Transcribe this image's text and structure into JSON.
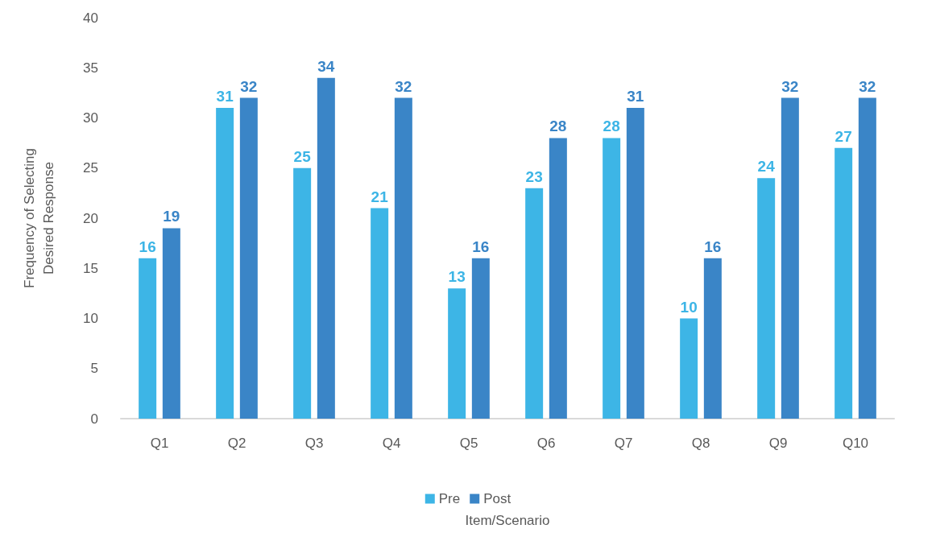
{
  "chart_data": {
    "type": "bar",
    "xlabel": "Item/Scenario",
    "ylabel": "Frequency of Selecting\nDesired Response",
    "categories": [
      "Q1",
      "Q2",
      "Q3",
      "Q4",
      "Q5",
      "Q6",
      "Q7",
      "Q8",
      "Q9",
      "Q10"
    ],
    "series": [
      {
        "name": "Pre",
        "color": "#3db5e6",
        "values": [
          16,
          31,
          25,
          21,
          13,
          23,
          28,
          10,
          24,
          27
        ]
      },
      {
        "name": "Post",
        "color": "#3a85c7",
        "values": [
          19,
          32,
          34,
          32,
          16,
          28,
          31,
          16,
          32,
          32
        ]
      }
    ],
    "ylim": [
      0,
      40
    ],
    "yticks": [
      0,
      5,
      10,
      15,
      20,
      25,
      30,
      35,
      40
    ],
    "grid": false,
    "legend": "bottom",
    "data_labels": true
  }
}
